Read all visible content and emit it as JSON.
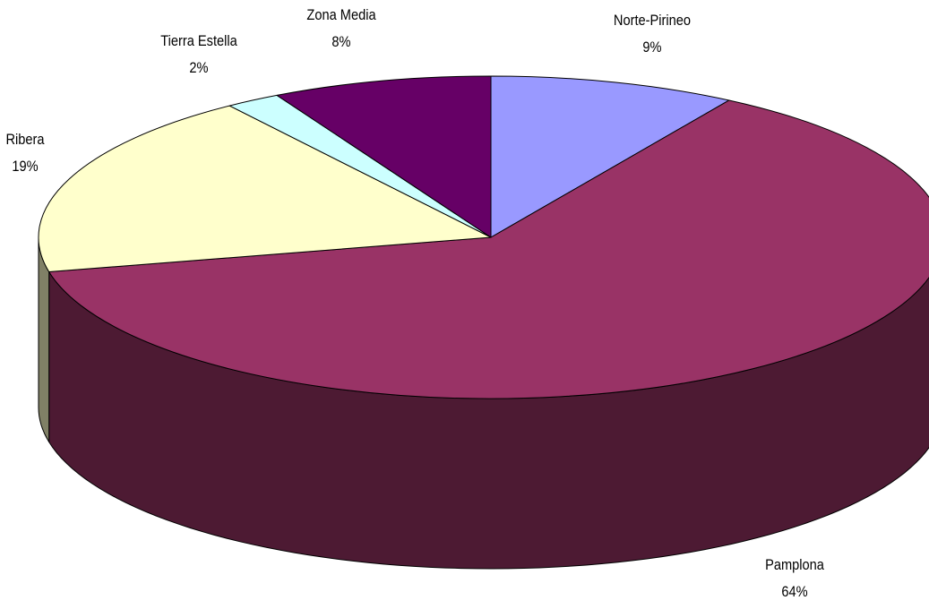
{
  "chart_data": {
    "type": "pie",
    "style": "3d",
    "start_angle_deg": 0,
    "direction": "clockwise",
    "slices": [
      {
        "name": "Norte-Pirineo",
        "percent_label": "9%",
        "value": 9,
        "color": "#9999FF",
        "side_color": "#4D4D80"
      },
      {
        "name": "Pamplona",
        "percent_label": "64%",
        "value": 64,
        "color": "#993366",
        "side_color": "#4D1A33"
      },
      {
        "name": "Ribera",
        "percent_label": "19%",
        "value": 19,
        "color": "#FFFFCC",
        "side_color": "#808066"
      },
      {
        "name": "Tierra Estella",
        "percent_label": "2%",
        "value": 2,
        "color": "#CCFFFF",
        "side_color": "#668080"
      },
      {
        "name": "Zona Media",
        "percent_label": "8%",
        "value": 8,
        "color": "#660066",
        "side_color": "#330033"
      }
    ],
    "legend": "none",
    "title": ""
  }
}
